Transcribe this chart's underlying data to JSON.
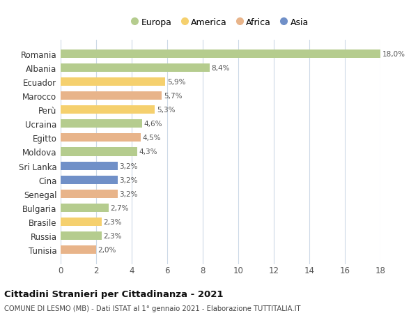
{
  "countries": [
    "Romania",
    "Albania",
    "Ecuador",
    "Marocco",
    "Perù",
    "Ucraina",
    "Egitto",
    "Moldova",
    "Sri Lanka",
    "Cina",
    "Senegal",
    "Bulgaria",
    "Brasile",
    "Russia",
    "Tunisia"
  ],
  "values": [
    18.0,
    8.4,
    5.9,
    5.7,
    5.3,
    4.6,
    4.5,
    4.3,
    3.2,
    3.2,
    3.2,
    2.7,
    2.3,
    2.3,
    2.0
  ],
  "labels": [
    "18,0%",
    "8,4%",
    "5,9%",
    "5,7%",
    "5,3%",
    "4,6%",
    "4,5%",
    "4,3%",
    "3,2%",
    "3,2%",
    "3,2%",
    "2,7%",
    "2,3%",
    "2,3%",
    "2,0%"
  ],
  "continents": [
    "Europa",
    "Europa",
    "America",
    "Africa",
    "America",
    "Europa",
    "Africa",
    "Europa",
    "Asia",
    "Asia",
    "Africa",
    "Europa",
    "America",
    "Europa",
    "Africa"
  ],
  "continent_colors": {
    "Europa": "#b5cc8e",
    "America": "#f5d06e",
    "Africa": "#e8b48a",
    "Asia": "#7090c8"
  },
  "legend_order": [
    "Europa",
    "America",
    "Africa",
    "Asia"
  ],
  "title_bold": "Cittadini Stranieri per Cittadinanza - 2021",
  "subtitle": "COMUNE DI LESMO (MB) - Dati ISTAT al 1° gennaio 2021 - Elaborazione TUTTITALIA.IT",
  "xlim": [
    0,
    18
  ],
  "xticks": [
    0,
    2,
    4,
    6,
    8,
    10,
    12,
    14,
    16,
    18
  ],
  "background_color": "#ffffff",
  "grid_color": "#ccd9e6",
  "bar_height": 0.6
}
